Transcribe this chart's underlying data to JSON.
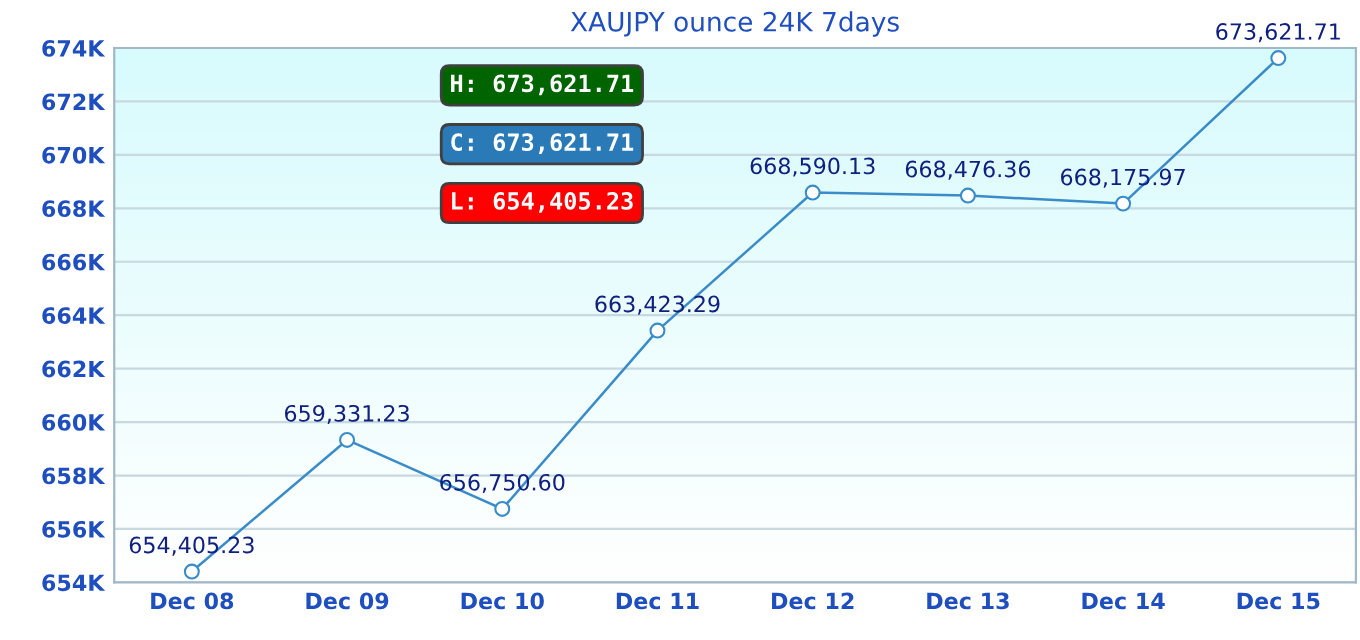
{
  "chart_data": {
    "type": "line",
    "title": "XAUJPY ounce 24K 7days",
    "categories": [
      "Dec 08",
      "Dec 09",
      "Dec 10",
      "Dec 11",
      "Dec 12",
      "Dec 13",
      "Dec 14",
      "Dec 15"
    ],
    "series": [
      {
        "color": "#3a8cc8",
        "values": [
          654405.23,
          659331.23,
          656750.6,
          663423.29,
          668590.13,
          668476.36,
          668175.97,
          673621.71
        ],
        "value_labels": [
          "654,405.23",
          "659,331.23",
          "656,750.60",
          "663,423.29",
          "668,590.13",
          "668,476.36",
          "668,175.97",
          "673,621.71"
        ]
      }
    ],
    "ylim": [
      654000,
      674000
    ],
    "yticks": [
      {
        "value": 654000,
        "label": "654K"
      },
      {
        "value": 656000,
        "label": "656K"
      },
      {
        "value": 658000,
        "label": "658K"
      },
      {
        "value": 660000,
        "label": "660K"
      },
      {
        "value": 662000,
        "label": "662K"
      },
      {
        "value": 664000,
        "label": "664K"
      },
      {
        "value": 666000,
        "label": "666K"
      },
      {
        "value": 668000,
        "label": "668K"
      },
      {
        "value": 670000,
        "label": "670K"
      },
      {
        "value": 672000,
        "label": "672K"
      },
      {
        "value": 674000,
        "label": "674K"
      }
    ],
    "grid": "y",
    "marker": "circle",
    "line_style": "solid",
    "annotations": [
      "H: 673,621.71",
      "C: 673,621.71",
      "L: 654,405.23"
    ]
  }
}
